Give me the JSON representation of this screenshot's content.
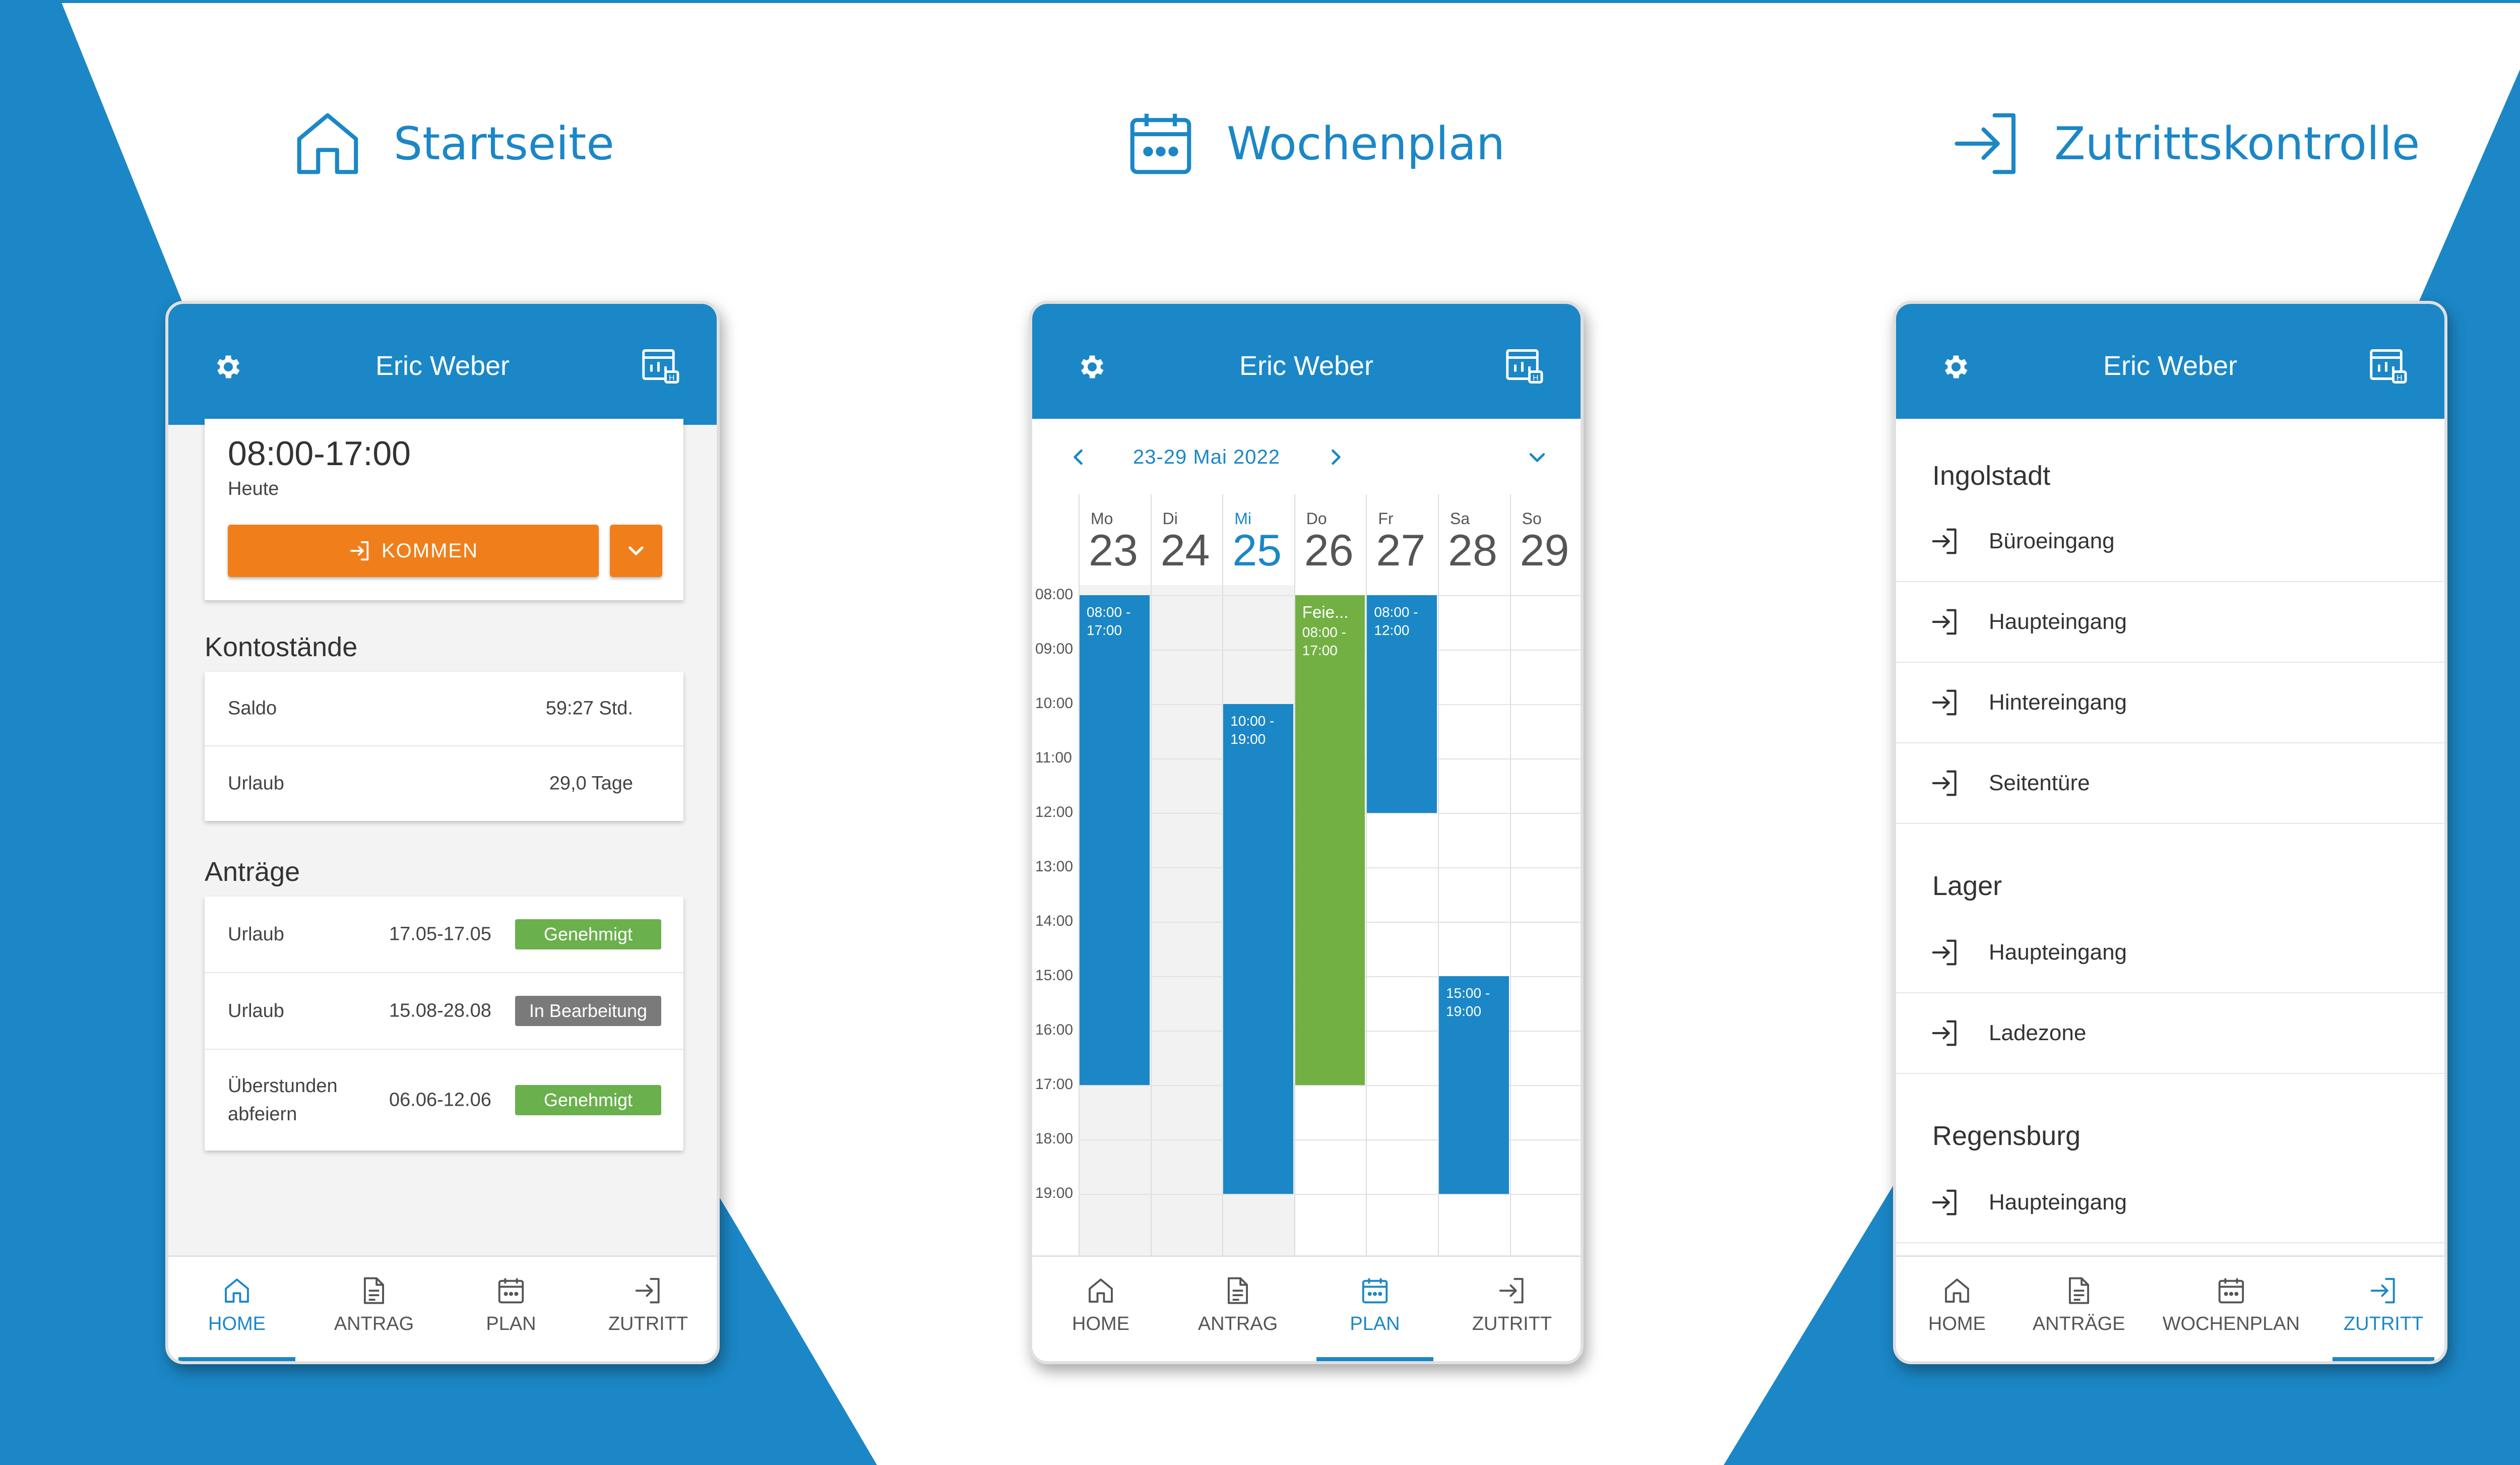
{
  "colors": {
    "brand_blue": "#1b87c6",
    "accent_orange": "#f07f1b",
    "approved_green": "#6ab04c",
    "pending_gray": "#7a7a7a",
    "holiday_green": "#72b043"
  },
  "headings": [
    {
      "icon": "home-icon",
      "label": "Startseite"
    },
    {
      "icon": "calendar-icon",
      "label": "Wochenplan"
    },
    {
      "icon": "login-icon",
      "label": "Zutrittskontrolle"
    }
  ],
  "user_name": "Eric Weber",
  "home": {
    "today": {
      "time": "08:00-17:00",
      "label": "Heute",
      "button": "KOMMEN"
    },
    "kontostaende": {
      "title": "Kontostände",
      "rows": [
        {
          "label": "Saldo",
          "value": "59:27 Std."
        },
        {
          "label": "Urlaub",
          "value": "29,0 Tage"
        }
      ]
    },
    "antraege": {
      "title": "Anträge",
      "rows": [
        {
          "label": "Urlaub",
          "dates": "17.05-17.05",
          "status": "Genehmigt",
          "status_color": "#6ab04c"
        },
        {
          "label": "Urlaub",
          "dates": "15.08-28.08",
          "status": "In Bearbeitung",
          "status_color": "#7a7a7a"
        },
        {
          "label": "Überstunden abfeiern",
          "dates": "06.06-12.06",
          "status": "Genehmigt",
          "status_color": "#6ab04c"
        }
      ]
    },
    "nav": [
      {
        "icon": "home-icon",
        "label": "HOME",
        "active": true
      },
      {
        "icon": "document-icon",
        "label": "ANTRAG",
        "active": false
      },
      {
        "icon": "calendar-icon",
        "label": "PLAN",
        "active": false
      },
      {
        "icon": "login-icon",
        "label": "ZUTRITT",
        "active": false
      }
    ]
  },
  "plan": {
    "range": "23-29 Mai 2022",
    "days": [
      {
        "name": "Mo",
        "date": "23",
        "current": false,
        "shaded": true
      },
      {
        "name": "Di",
        "date": "24",
        "current": false,
        "shaded": true
      },
      {
        "name": "Mi",
        "date": "25",
        "current": true,
        "shaded": true
      },
      {
        "name": "Do",
        "date": "26",
        "current": false,
        "shaded": false
      },
      {
        "name": "Fr",
        "date": "27",
        "current": false,
        "shaded": false
      },
      {
        "name": "Sa",
        "date": "28",
        "current": false,
        "shaded": false
      },
      {
        "name": "So",
        "date": "29",
        "current": false,
        "shaded": false
      }
    ],
    "hours": [
      "08:00",
      "09:00",
      "10:00",
      "11:00",
      "12:00",
      "13:00",
      "14:00",
      "15:00",
      "16:00",
      "17:00",
      "18:00",
      "19:00"
    ],
    "events": [
      {
        "day": 0,
        "start": 8,
        "end": 17,
        "text": "08:00 -\n17:00",
        "title": "",
        "color": "#1b87c6"
      },
      {
        "day": 2,
        "start": 10,
        "end": 19,
        "text": "10:00 -\n19:00",
        "title": "",
        "color": "#1b87c6"
      },
      {
        "day": 3,
        "start": 8,
        "end": 17,
        "text": "08:00 -\n17:00",
        "title": "Feie...",
        "color": "#72b043"
      },
      {
        "day": 4,
        "start": 8,
        "end": 12,
        "text": "08:00 -\n12:00",
        "title": "",
        "color": "#1b87c6"
      },
      {
        "day": 5,
        "start": 15,
        "end": 19,
        "text": "15:00 -\n19:00",
        "title": "",
        "color": "#1b87c6"
      }
    ],
    "nav": [
      {
        "icon": "home-icon",
        "label": "HOME",
        "active": false
      },
      {
        "icon": "document-icon",
        "label": "ANTRAG",
        "active": false
      },
      {
        "icon": "calendar-icon",
        "label": "PLAN",
        "active": true
      },
      {
        "icon": "login-icon",
        "label": "ZUTRITT",
        "active": false
      }
    ]
  },
  "access": {
    "groups": [
      {
        "title": "Ingolstadt",
        "doors": [
          "Büroeingang",
          "Haupteingang",
          "Hintereingang",
          "Seitentüre"
        ]
      },
      {
        "title": "Lager",
        "doors": [
          "Haupteingang",
          "Ladezone"
        ]
      },
      {
        "title": "Regensburg",
        "doors": [
          "Haupteingang"
        ]
      }
    ],
    "nav": [
      {
        "icon": "home-icon",
        "label": "HOME",
        "active": false
      },
      {
        "icon": "document-icon",
        "label": "ANTRÄGE",
        "active": false
      },
      {
        "icon": "calendar-icon",
        "label": "WOCHENPLAN",
        "active": false
      },
      {
        "icon": "login-icon",
        "label": "ZUTRITT",
        "active": true
      }
    ]
  }
}
